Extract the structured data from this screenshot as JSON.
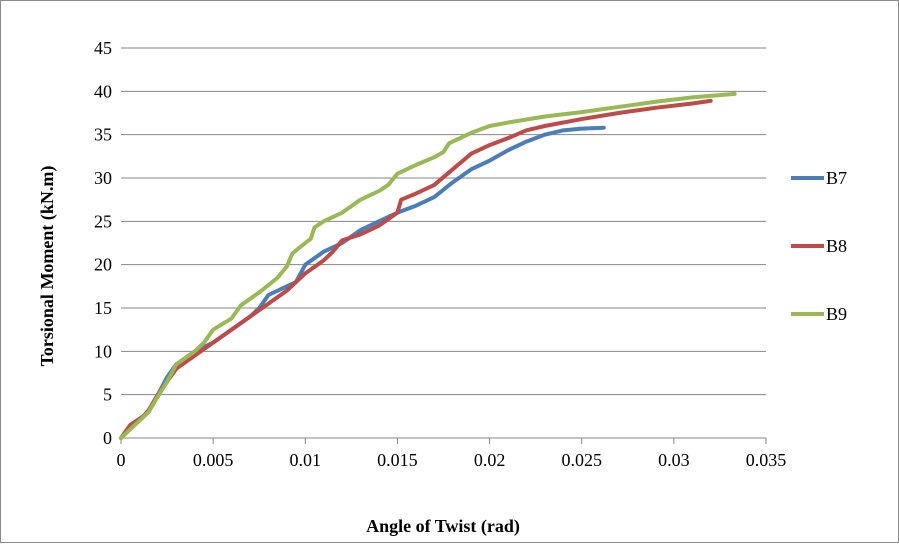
{
  "chart_data": {
    "type": "line",
    "title": "",
    "xlabel": "Angle of Twist (rad)",
    "ylabel": "Torsional Moment (kN.m)",
    "xlim": [
      0,
      0.035
    ],
    "ylim": [
      0,
      45
    ],
    "xticks": [
      0,
      0.005,
      0.01,
      0.015,
      0.02,
      0.025,
      0.03,
      0.035
    ],
    "xtick_labels": [
      "0",
      "0.005",
      "0.01",
      "0.015",
      "0.02",
      "0.025",
      "0.03",
      "0.035"
    ],
    "yticks": [
      0,
      5,
      10,
      15,
      20,
      25,
      30,
      35,
      40,
      45
    ],
    "ytick_labels": [
      "0",
      "5",
      "10",
      "15",
      "20",
      "25",
      "30",
      "35",
      "40",
      "45"
    ],
    "grid": "horizontal",
    "legend_position": "right",
    "series": [
      {
        "name": "B7",
        "color": "#4a7ebb",
        "points": [
          [
            0,
            0
          ],
          [
            0.0005,
            1.2
          ],
          [
            0.0015,
            3
          ],
          [
            0.002,
            5
          ],
          [
            0.0025,
            7
          ],
          [
            0.003,
            8.5
          ],
          [
            0.004,
            10
          ],
          [
            0.005,
            11
          ],
          [
            0.006,
            12.5
          ],
          [
            0.007,
            14
          ],
          [
            0.0075,
            15
          ],
          [
            0.008,
            16.5
          ],
          [
            0.009,
            17.5
          ],
          [
            0.0095,
            18
          ],
          [
            0.01,
            20
          ],
          [
            0.011,
            21.5
          ],
          [
            0.012,
            22.5
          ],
          [
            0.013,
            24
          ],
          [
            0.014,
            25
          ],
          [
            0.015,
            26
          ],
          [
            0.016,
            26.8
          ],
          [
            0.017,
            27.8
          ],
          [
            0.018,
            29.5
          ],
          [
            0.019,
            31
          ],
          [
            0.02,
            32
          ],
          [
            0.021,
            33.2
          ],
          [
            0.022,
            34.2
          ],
          [
            0.023,
            35
          ],
          [
            0.024,
            35.5
          ],
          [
            0.025,
            35.7
          ],
          [
            0.0262,
            35.8
          ]
        ]
      },
      {
        "name": "B8",
        "color": "#be4b48",
        "points": [
          [
            0,
            0
          ],
          [
            0.0005,
            1.5
          ],
          [
            0.0012,
            2.5
          ],
          [
            0.0015,
            3.2
          ],
          [
            0.002,
            5
          ],
          [
            0.0025,
            6.5
          ],
          [
            0.003,
            8
          ],
          [
            0.004,
            9.5
          ],
          [
            0.005,
            11
          ],
          [
            0.006,
            12.5
          ],
          [
            0.007,
            14
          ],
          [
            0.008,
            15.5
          ],
          [
            0.009,
            17
          ],
          [
            0.01,
            19
          ],
          [
            0.011,
            20.5
          ],
          [
            0.0115,
            21.5
          ],
          [
            0.012,
            22.8
          ],
          [
            0.013,
            23.5
          ],
          [
            0.014,
            24.5
          ],
          [
            0.015,
            26
          ],
          [
            0.0152,
            27.5
          ],
          [
            0.016,
            28.2
          ],
          [
            0.017,
            29.2
          ],
          [
            0.018,
            31
          ],
          [
            0.019,
            32.8
          ],
          [
            0.02,
            33.8
          ],
          [
            0.021,
            34.6
          ],
          [
            0.022,
            35.5
          ],
          [
            0.023,
            36
          ],
          [
            0.025,
            36.8
          ],
          [
            0.027,
            37.5
          ],
          [
            0.029,
            38.1
          ],
          [
            0.031,
            38.6
          ],
          [
            0.032,
            38.9
          ]
        ]
      },
      {
        "name": "B9",
        "color": "#98b954",
        "points": [
          [
            0,
            0
          ],
          [
            0.0005,
            1
          ],
          [
            0.001,
            2
          ],
          [
            0.0015,
            3
          ],
          [
            0.002,
            4.8
          ],
          [
            0.0025,
            6.5
          ],
          [
            0.003,
            8.5
          ],
          [
            0.004,
            10
          ],
          [
            0.0045,
            11
          ],
          [
            0.005,
            12.5
          ],
          [
            0.006,
            13.8
          ],
          [
            0.0065,
            15.3
          ],
          [
            0.0075,
            16.8
          ],
          [
            0.0085,
            18.5
          ],
          [
            0.009,
            19.8
          ],
          [
            0.0093,
            21.3
          ],
          [
            0.01,
            22.5
          ],
          [
            0.0103,
            23
          ],
          [
            0.0105,
            24.3
          ],
          [
            0.011,
            25
          ],
          [
            0.012,
            26
          ],
          [
            0.013,
            27.5
          ],
          [
            0.014,
            28.5
          ],
          [
            0.0145,
            29.2
          ],
          [
            0.015,
            30.5
          ],
          [
            0.016,
            31.5
          ],
          [
            0.017,
            32.4
          ],
          [
            0.0175,
            33
          ],
          [
            0.0178,
            34
          ],
          [
            0.019,
            35.2
          ],
          [
            0.02,
            36
          ],
          [
            0.021,
            36.4
          ],
          [
            0.023,
            37.1
          ],
          [
            0.025,
            37.6
          ],
          [
            0.027,
            38.2
          ],
          [
            0.029,
            38.8
          ],
          [
            0.031,
            39.3
          ],
          [
            0.0333,
            39.7
          ]
        ]
      }
    ]
  }
}
